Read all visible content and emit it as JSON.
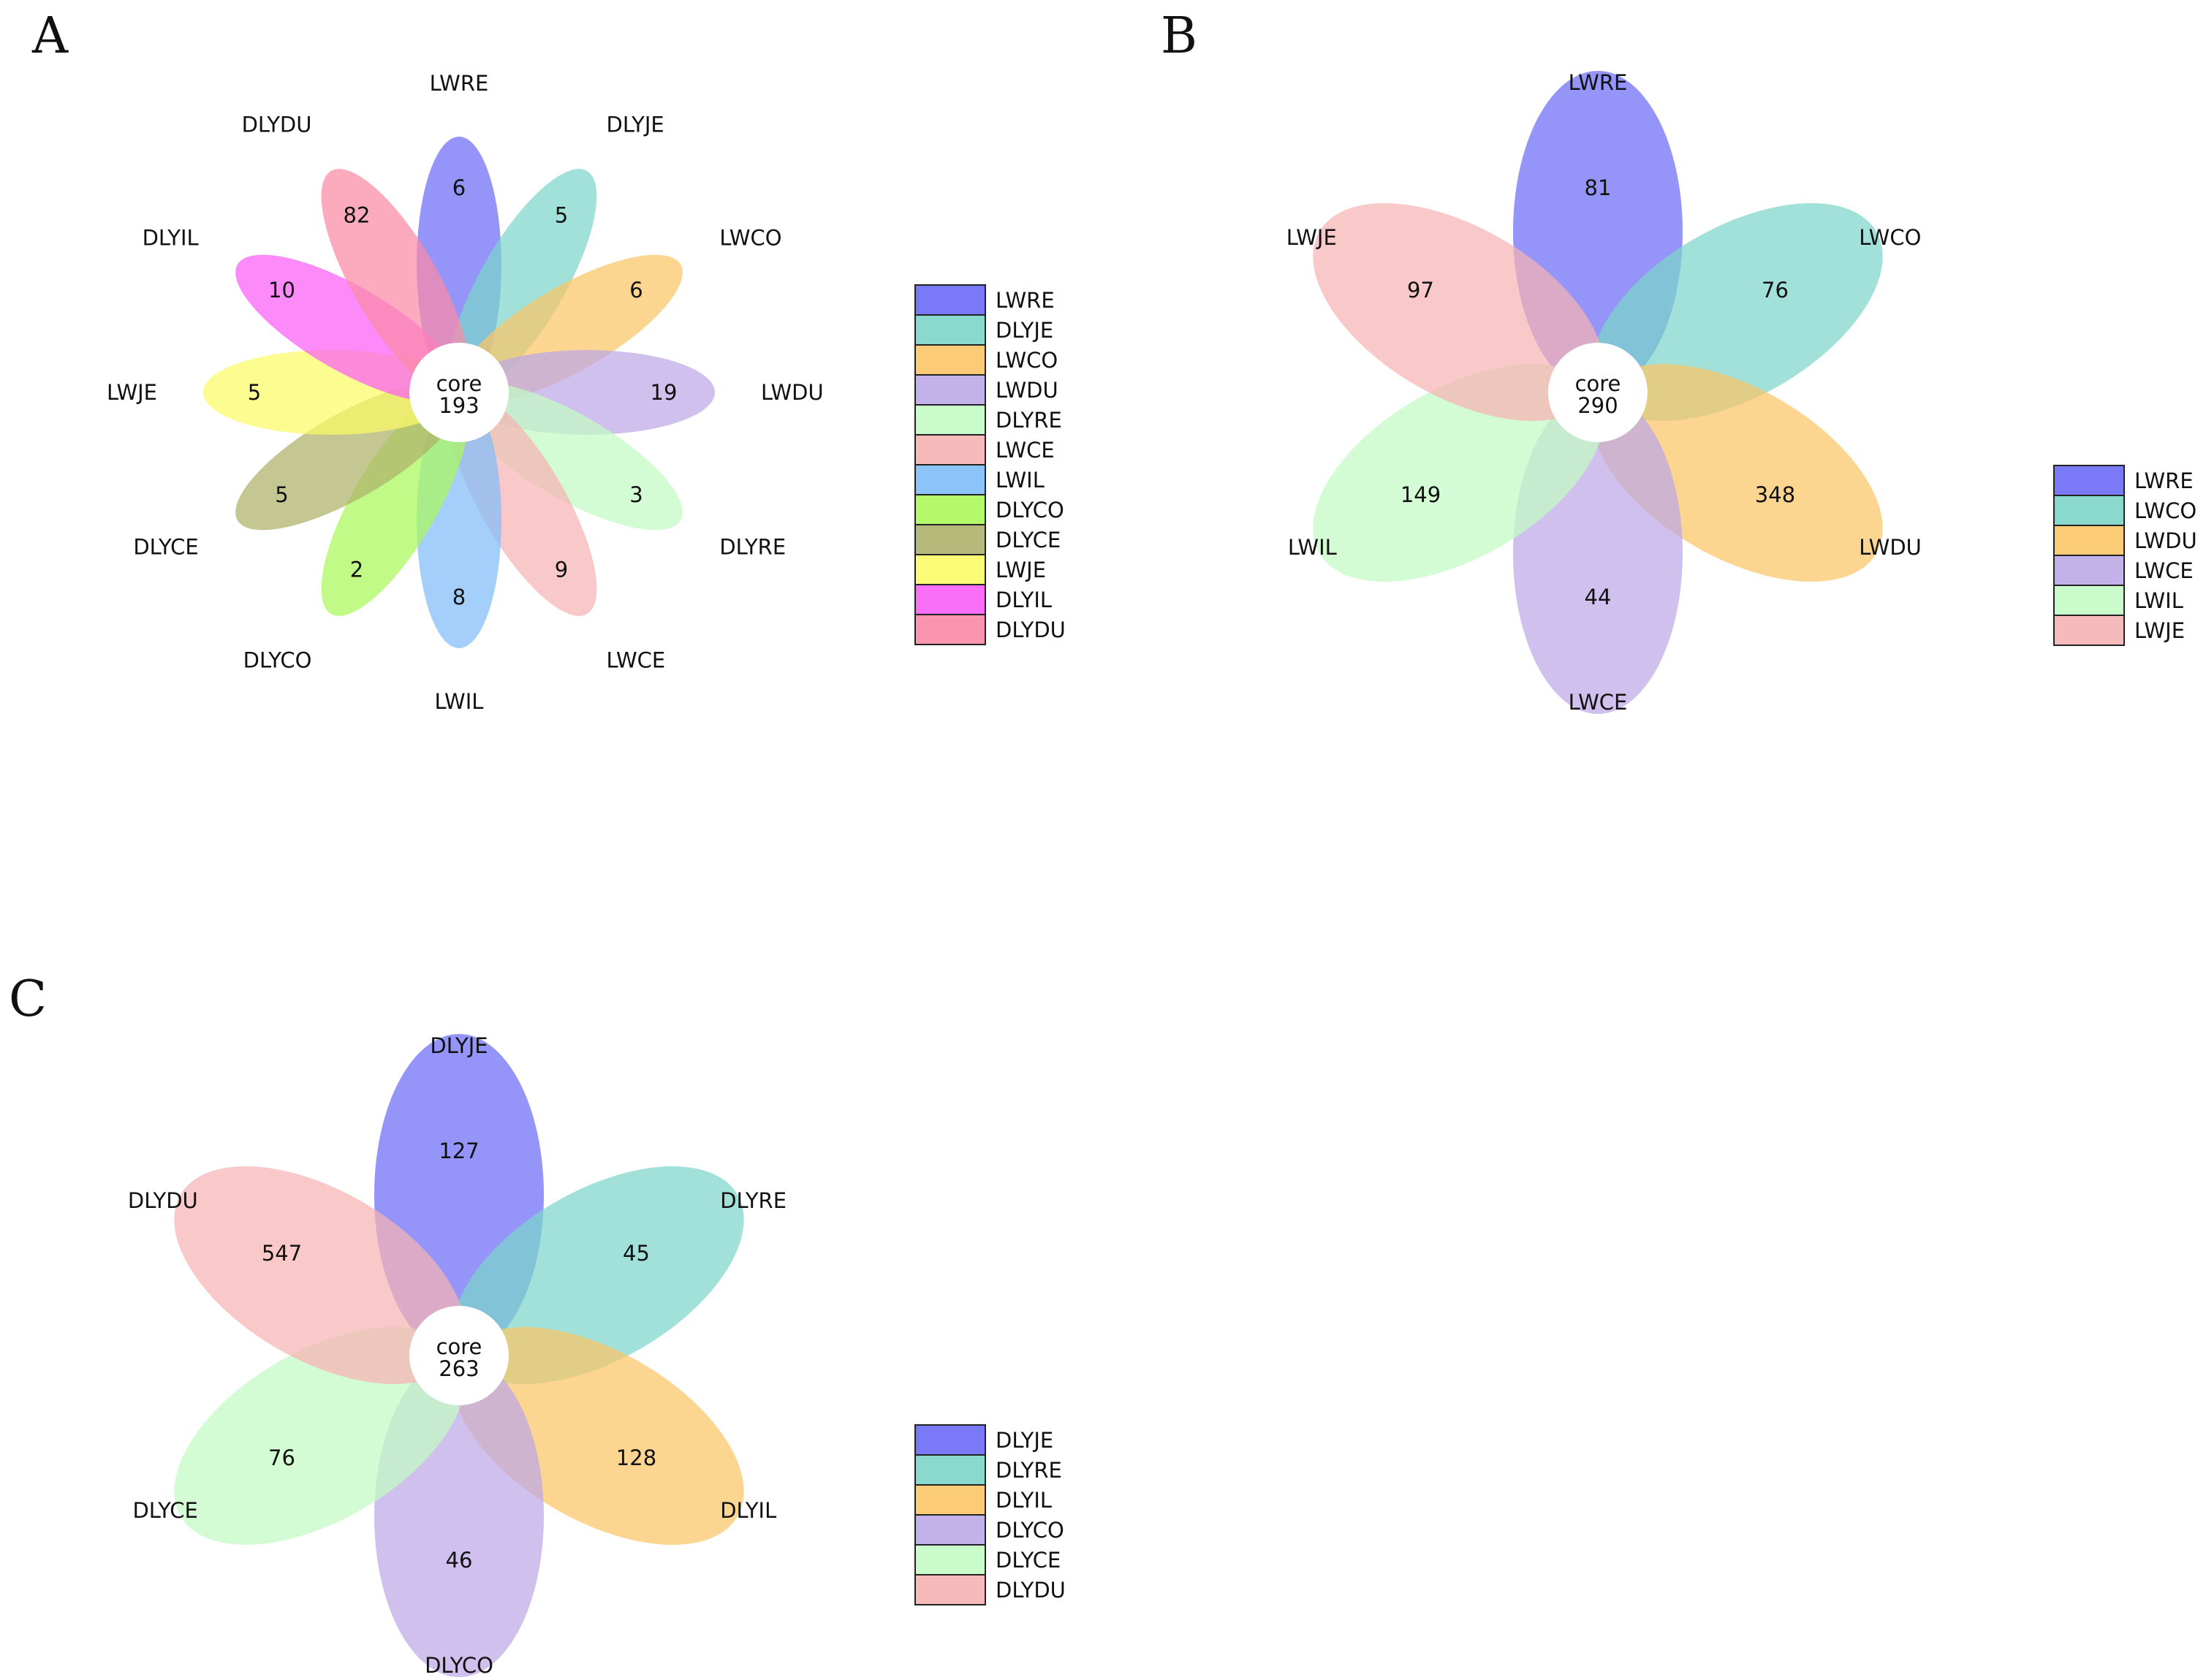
{
  "chart_data": [
    {
      "type": "flower",
      "panel": "A",
      "core": {
        "label": "core",
        "value": 193
      },
      "petals": [
        {
          "name": "LWRE",
          "value": 6,
          "color": "#6b6bf7"
        },
        {
          "name": "DLYJE",
          "value": 5,
          "color": "#7dd5ca"
        },
        {
          "name": "LWCO",
          "value": 6,
          "color": "#fbc566"
        },
        {
          "name": "LWDU",
          "value": 19,
          "color": "#bca8e8"
        },
        {
          "name": "DLYRE",
          "value": 3,
          "color": "#c4fbc4"
        },
        {
          "name": "LWCE",
          "value": 9,
          "color": "#f6b3b3"
        },
        {
          "name": "LWIL",
          "value": 8,
          "color": "#7fbdf8"
        },
        {
          "name": "DLYCO",
          "value": 2,
          "color": "#abf85a"
        },
        {
          "name": "DLYCE",
          "value": 5,
          "color": "#aeb16a"
        },
        {
          "name": "LWJE",
          "value": 5,
          "color": "#fbfb66"
        },
        {
          "name": "DLYIL",
          "value": 10,
          "color": "#fb5ef7"
        },
        {
          "name": "DLYDU",
          "value": 82,
          "color": "#fb8aa6"
        }
      ]
    },
    {
      "type": "flower",
      "panel": "B",
      "core": {
        "label": "core",
        "value": 290
      },
      "petals": [
        {
          "name": "LWRE",
          "value": 81,
          "color": "#6b6bf7"
        },
        {
          "name": "LWCO",
          "value": 76,
          "color": "#7dd5ca"
        },
        {
          "name": "LWDU",
          "value": 348,
          "color": "#fbc566"
        },
        {
          "name": "LWCE",
          "value": 44,
          "color": "#bca8e8"
        },
        {
          "name": "LWIL",
          "value": 149,
          "color": "#c4fbc4"
        },
        {
          "name": "LWJE",
          "value": 97,
          "color": "#f6b3b3"
        }
      ]
    },
    {
      "type": "flower",
      "panel": "C",
      "core": {
        "label": "core",
        "value": 263
      },
      "petals": [
        {
          "name": "DLYJE",
          "value": 127,
          "color": "#6b6bf7"
        },
        {
          "name": "DLYRE",
          "value": 45,
          "color": "#7dd5ca"
        },
        {
          "name": "DLYIL",
          "value": 128,
          "color": "#fbc566"
        },
        {
          "name": "DLYCO",
          "value": 46,
          "color": "#bca8e8"
        },
        {
          "name": "DLYCE",
          "value": 76,
          "color": "#c4fbc4"
        },
        {
          "name": "DLYDU",
          "value": 547,
          "color": "#f6b3b3"
        }
      ]
    }
  ]
}
